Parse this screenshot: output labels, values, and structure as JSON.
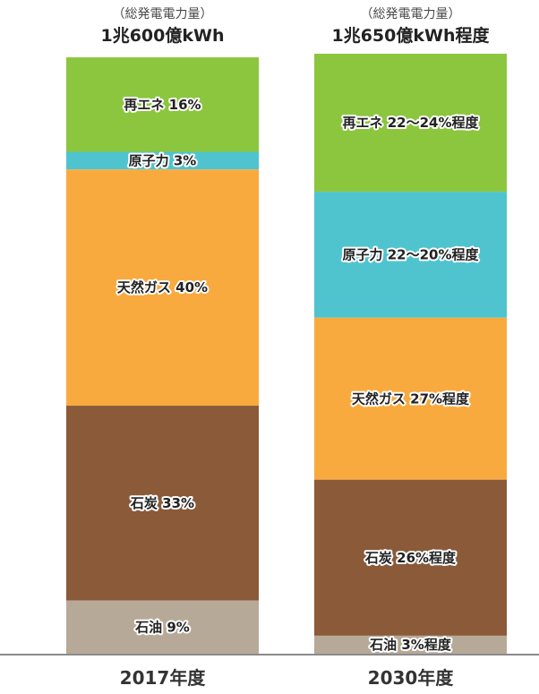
{
  "chart_data": {
    "type": "bar",
    "stacked": true,
    "categories": [
      "2017年度",
      "2030年度"
    ],
    "headers": [
      {
        "subtitle": "（総発電電力量）",
        "title": "1兆600億kWh"
      },
      {
        "subtitle": "（総発電電力量）",
        "title": "1兆650億kWh程度"
      }
    ],
    "series": [
      {
        "name": "再エネ",
        "values": [
          16,
          23
        ],
        "labels": [
          "再エネ 16%",
          "再エネ 22〜24%程度"
        ],
        "color": "#8CC63E"
      },
      {
        "name": "原子力",
        "values": [
          3,
          21
        ],
        "labels": [
          "原子力 3%",
          "原子力 22〜20%程度"
        ],
        "color": "#4FC4CF"
      },
      {
        "name": "天然ガス",
        "values": [
          40,
          27
        ],
        "labels": [
          "天然ガス 40%",
          "天然ガス 27%程度"
        ],
        "color": "#F9AA3E"
      },
      {
        "name": "石炭",
        "values": [
          33,
          26
        ],
        "labels": [
          "石炭 33%",
          "石炭 26%程度"
        ],
        "color": "#8A5A39"
      },
      {
        "name": "石油",
        "values": [
          9,
          3
        ],
        "labels": [
          "石油 9%",
          "石油 3%程度"
        ],
        "color": "#B7A998"
      }
    ],
    "ylim": [
      0,
      100
    ]
  }
}
